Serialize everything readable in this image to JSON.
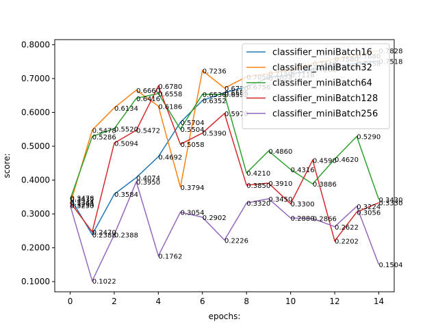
{
  "chart_data": {
    "type": "line",
    "title": "",
    "xlabel": "epochs:",
    "ylabel": "score:",
    "xlim": [
      -0.7,
      14.7
    ],
    "ylim": [
      0.07,
      0.815
    ],
    "xticks": [
      0,
      2,
      4,
      6,
      8,
      10,
      12,
      14
    ],
    "yticks": [
      0.1,
      0.2,
      0.3,
      0.4,
      0.5,
      0.6,
      0.7,
      0.8
    ],
    "xtick_labels": [
      "0",
      "2",
      "4",
      "6",
      "8",
      "10",
      "12",
      "14"
    ],
    "ytick_labels": [
      "0.1000",
      "0.2000",
      "0.3000",
      "0.4000",
      "0.5000",
      "0.6000",
      "0.7000",
      "0.8000"
    ],
    "legend_placement": "upper-right",
    "grid": false,
    "x": [
      0,
      1,
      2,
      3,
      4,
      5,
      6,
      7,
      8,
      9,
      10,
      11,
      12,
      13,
      14
    ],
    "series": [
      {
        "name": "classifier_miniBatch16",
        "color": "#1f77b4",
        "values": [
          0.3478,
          0.2388,
          0.3584,
          0.4074,
          0.4692,
          0.5704,
          0.6352,
          0.6586,
          0.6756,
          0.7024,
          0.7118,
          0.7268,
          0.7348,
          0.7458,
          0.7518
        ],
        "labels": [
          "0.3478",
          "0.2388",
          "0.3584",
          "0.4074",
          "0.4692",
          "0.5704",
          "0.6352",
          "0.6586",
          "0.6756",
          "0.7024",
          "0.7118",
          "0.7268",
          "0.7348",
          "0.7458",
          "0.7518"
        ]
      },
      {
        "name": "classifier_miniBatch32",
        "color": "#ff7f0e",
        "values": [
          0.3294,
          0.5478,
          0.6134,
          0.666,
          0.6186,
          0.3794,
          0.7236,
          0.672,
          0.705,
          0.715,
          0.725,
          0.744,
          0.758,
          0.768,
          0.7828
        ],
        "labels": [
          "0.3294",
          "0.5478",
          "0.6134",
          "0.6660",
          "0.6186",
          "0.3794",
          "0.7236",
          "0.6720",
          "0.7050",
          "0.7150",
          "0.7250",
          "0.7440",
          "0.7580",
          "0.7680",
          "0.7828"
        ]
      },
      {
        "name": "classifier_miniBatch64",
        "color": "#2ca02c",
        "values": [
          0.3432,
          0.5286,
          0.552,
          0.6416,
          0.6558,
          0.5504,
          0.6536,
          0.6532,
          0.421,
          0.486,
          0.4316,
          0.3886,
          0.462,
          0.529,
          0.343
        ],
        "labels": [
          "0.3432",
          "0.5286",
          "0.5520",
          "0.6416",
          "0.6558",
          "0.5504",
          "0.6536",
          "0.6532",
          "0.4210",
          "0.4860",
          "0.4316",
          "0.3886",
          "0.4620",
          "0.5290",
          "0.3430"
        ]
      },
      {
        "name": "classifier_miniBatch128",
        "color": "#d62728",
        "values": [
          0.3344,
          0.247,
          0.5094,
          0.5472,
          0.678,
          0.5058,
          0.539,
          0.597,
          0.385,
          0.391,
          0.33,
          0.459,
          0.2202,
          0.3056,
          0.333
        ],
        "labels": [
          "0.3344",
          "0.2470",
          "0.5094",
          "0.5472",
          "0.6780",
          "0.5058",
          "0.5390",
          "0.5970",
          "0.3850",
          "0.3910",
          "0.3300",
          "0.4590",
          "0.2202",
          "0.3056",
          "0.3330"
        ]
      },
      {
        "name": "classifier_miniBatch256",
        "color": "#9467bd",
        "values": [
          0.325,
          0.1022,
          0.2388,
          0.395,
          0.1762,
          0.3054,
          0.2902,
          0.2226,
          0.332,
          0.345,
          0.288,
          0.2866,
          0.2622,
          0.3224,
          0.1504
        ],
        "labels": [
          "0.3250",
          "0.1022",
          "0.2388",
          "0.3950",
          "0.1762",
          "0.3054",
          "0.2902",
          "0.2226",
          "0.3320",
          "0.3450",
          "0.2880",
          "0.2866",
          "0.2622",
          "0.3224",
          "0.1504"
        ]
      }
    ]
  }
}
